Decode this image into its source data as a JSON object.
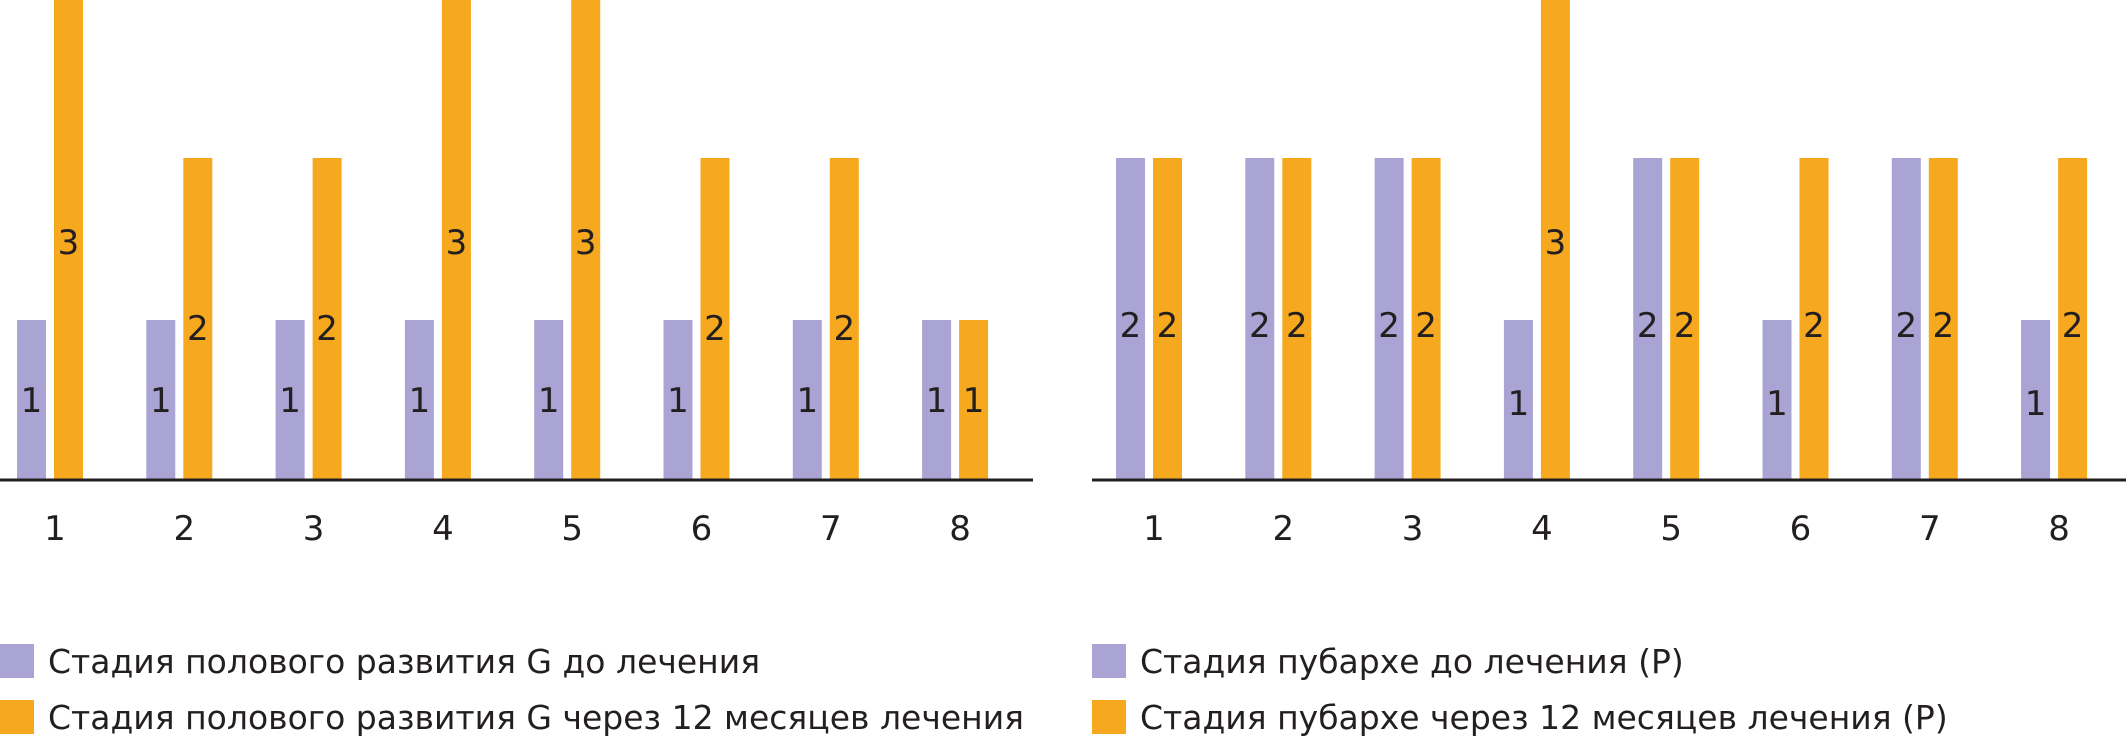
{
  "colors": {
    "before": "#a9a4d3",
    "after": "#f6a81f",
    "axis": "#231f20",
    "text": "#231f20"
  },
  "chart_data": [
    {
      "type": "bar",
      "categories": [
        "1",
        "2",
        "3",
        "4",
        "5",
        "6",
        "7",
        "8"
      ],
      "ylim": [
        0,
        3
      ],
      "series": [
        {
          "name": "Стадия полового развития G до лечения",
          "color": "#a9a4d3",
          "values": [
            1,
            1,
            1,
            1,
            1,
            1,
            1,
            1
          ]
        },
        {
          "name": "Стадия полового развития G через 12 месяцев лечения",
          "color": "#f6a81f",
          "values": [
            3,
            2,
            2,
            3,
            3,
            2,
            2,
            1
          ]
        }
      ],
      "legend": "bottom"
    },
    {
      "type": "bar",
      "categories": [
        "1",
        "2",
        "3",
        "4",
        "5",
        "6",
        "7",
        "8"
      ],
      "ylim": [
        0,
        3
      ],
      "series": [
        {
          "name": "Стадия пубархе до лечения (P)",
          "color": "#a9a4d3",
          "values": [
            2,
            2,
            2,
            1,
            2,
            1,
            2,
            1
          ]
        },
        {
          "name": "Стадия пубархе через 12 месяцев лечения (P)",
          "color": "#f6a81f",
          "values": [
            2,
            2,
            2,
            3,
            2,
            2,
            2,
            2
          ]
        }
      ],
      "legend": "bottom"
    }
  ]
}
